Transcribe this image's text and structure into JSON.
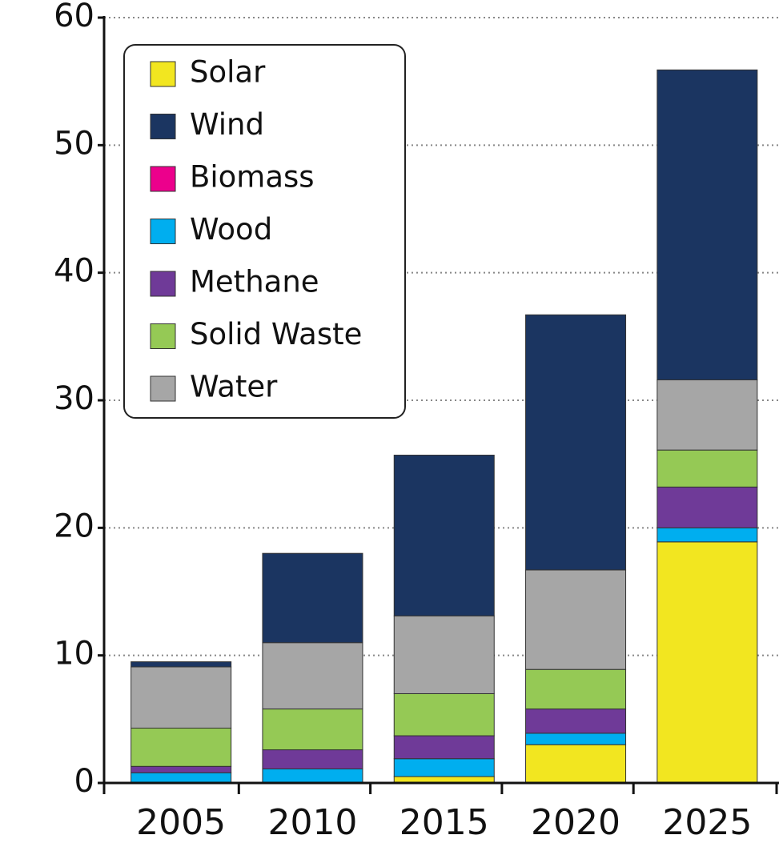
{
  "chart_data": {
    "type": "stacked_bar",
    "categories": [
      "2005",
      "2010",
      "2015",
      "2020",
      "2025"
    ],
    "series": [
      {
        "name": "Solar",
        "color": "#f2e620",
        "values": [
          0,
          0,
          0.5,
          3.0,
          18.9
        ]
      },
      {
        "name": "Wind",
        "color": "#1b3561",
        "values": [
          0.4,
          7.0,
          12.6,
          20.0,
          24.3
        ]
      },
      {
        "name": "Biomass",
        "color": "#ec008c",
        "values": [
          0,
          0,
          0,
          0,
          0
        ]
      },
      {
        "name": "Wood",
        "color": "#00aeef",
        "values": [
          0.8,
          1.1,
          1.4,
          0.9,
          1.1
        ]
      },
      {
        "name": "Methane",
        "color": "#6f3a98",
        "values": [
          0.5,
          1.5,
          1.8,
          1.9,
          3.2
        ]
      },
      {
        "name": "Solid Waste",
        "color": "#95c955",
        "values": [
          3.0,
          3.2,
          3.3,
          3.1,
          2.9
        ]
      },
      {
        "name": "Water",
        "color": "#a6a6a6",
        "values": [
          4.8,
          5.2,
          6.1,
          7.8,
          5.5
        ]
      }
    ],
    "stack_order": [
      0,
      2,
      3,
      4,
      5,
      6,
      1
    ],
    "ylim": [
      0,
      60
    ],
    "yticks": [
      0,
      10,
      20,
      30,
      40,
      50,
      60
    ],
    "grid": true,
    "legend": "upper left"
  }
}
